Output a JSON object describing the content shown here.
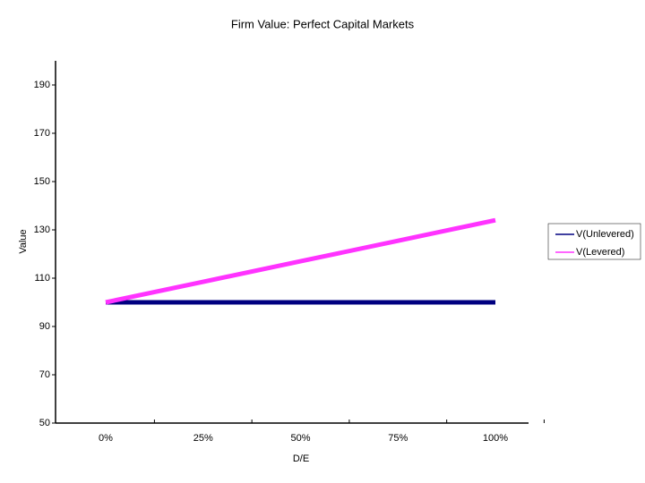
{
  "chart_data": {
    "type": "line",
    "title": "Firm Value:  Perfect Capital Markets",
    "x_label": "D/E",
    "y_label": "Value",
    "categories": [
      "0%",
      "25%",
      "50%",
      "75%",
      "100%"
    ],
    "series": [
      {
        "name": "V(Unlevered)",
        "color": "#000080",
        "values": [
          100,
          100,
          100,
          100,
          100
        ]
      },
      {
        "name": "V(Levered)",
        "color": "#ff33ff",
        "values": [
          100,
          108.5,
          117,
          125.5,
          134
        ]
      }
    ],
    "ylim": [
      50,
      200
    ],
    "yticks": [
      50,
      70,
      90,
      110,
      130,
      150,
      170,
      190
    ],
    "grid": false,
    "legend": "right"
  }
}
